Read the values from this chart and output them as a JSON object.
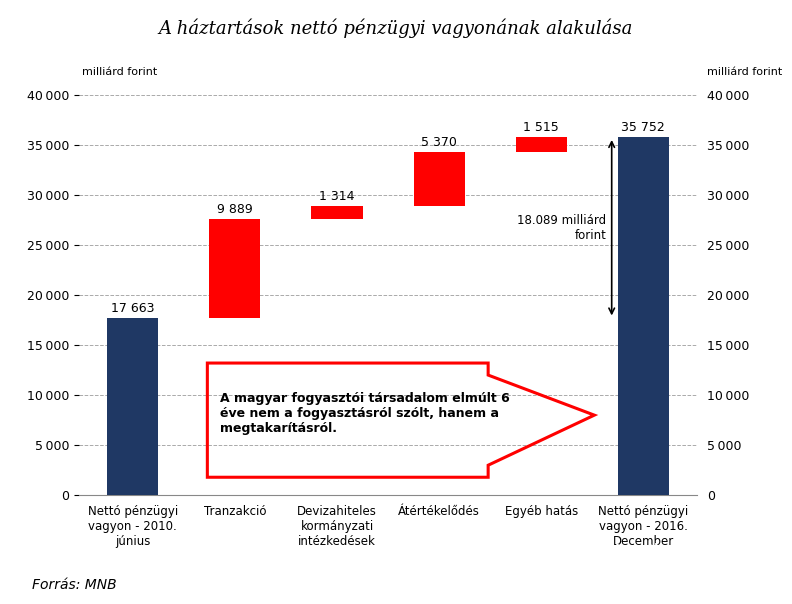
{
  "title": "A háztartások nettó pénzügyi vagyonának alakulása",
  "categories": [
    "Nettó pénzügyi\nvagyon - 2010.\njúnius",
    "Tranzakció",
    "Devizahiteles\nkormányzati\nintézkedések",
    "Átértékelődés",
    "Egyéb hatás",
    "Nettó pénzügyi\nvagyon - 2016.\nDecember"
  ],
  "values": [
    17663,
    9889,
    1314,
    5370,
    1515,
    35752
  ],
  "bottoms": [
    0,
    17663,
    27552,
    28866,
    34236,
    0
  ],
  "bar_colors": [
    "#1F3864",
    "#FF0000",
    "#FF0000",
    "#FF0000",
    "#FF0000",
    "#1F3864"
  ],
  "bar_labels": [
    "17 663",
    "9 889",
    "1 314",
    "5 370",
    "1 515",
    "35 752"
  ],
  "ylim": [
    0,
    41000
  ],
  "yticks": [
    0,
    5000,
    10000,
    15000,
    20000,
    25000,
    30000,
    35000,
    40000
  ],
  "ylabel_left": "milliárd forint",
  "ylabel_right": "milliárd forint",
  "annotation_arrow": "18.089 milliárd\nforint",
  "annotation_text": "A magyar fogyasztói társadalom elmúlt 6\néve nem a fogyasztásról szólt, hanem a\nmegtakarításról.",
  "source": "Forrás: MNB",
  "bg_color": "#FFFFFF",
  "grid_color": "#AAAAAA",
  "bar_width": 0.5,
  "logo_top_color": "#2AABB5",
  "logo_bottom_color": "#4D4D4D"
}
